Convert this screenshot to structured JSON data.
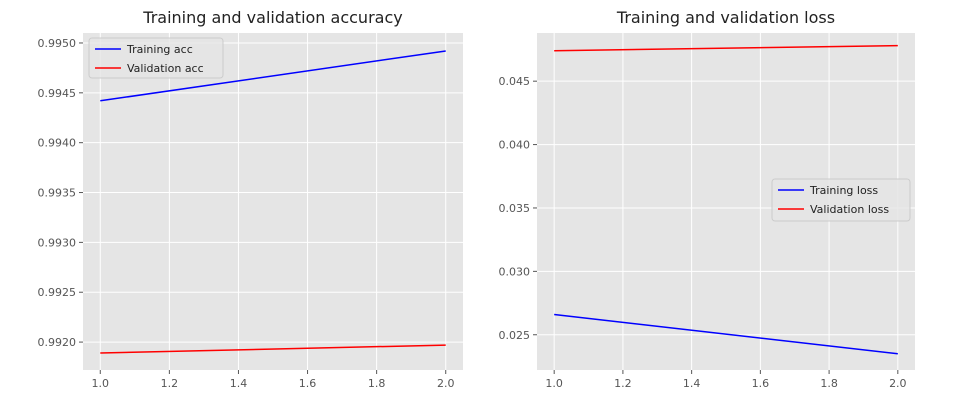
{
  "chart_data": [
    {
      "type": "line",
      "title": "Training and validation accuracy",
      "xlabel": "",
      "ylabel": "",
      "xlim": [
        0.95,
        2.05
      ],
      "ylim": [
        0.99172,
        0.9951
      ],
      "xticks": [
        1.0,
        1.2,
        1.4,
        1.6,
        1.8,
        2.0
      ],
      "xtick_labels": [
        "1.0",
        "1.2",
        "1.4",
        "1.6",
        "1.8",
        "2.0"
      ],
      "yticks": [
        0.992,
        0.9925,
        0.993,
        0.9935,
        0.994,
        0.9945,
        0.995
      ],
      "ytick_labels": [
        "0.9920",
        "0.9925",
        "0.9930",
        "0.9935",
        "0.9940",
        "0.9945",
        "0.9950"
      ],
      "grid": true,
      "legend": "upper left",
      "series": [
        {
          "name": "Training acc",
          "color": "#0000ff",
          "x": [
            1.0,
            2.0
          ],
          "y": [
            0.99442,
            0.99492
          ]
        },
        {
          "name": "Validation acc",
          "color": "#ff0000",
          "x": [
            1.0,
            2.0
          ],
          "y": [
            0.99189,
            0.99197
          ]
        }
      ]
    },
    {
      "type": "line",
      "title": "Training and validation loss",
      "xlabel": "",
      "ylabel": "",
      "xlim": [
        0.95,
        2.05
      ],
      "ylim": [
        0.02222,
        0.0488
      ],
      "xticks": [
        1.0,
        1.2,
        1.4,
        1.6,
        1.8,
        2.0
      ],
      "xtick_labels": [
        "1.0",
        "1.2",
        "1.4",
        "1.6",
        "1.8",
        "2.0"
      ],
      "yticks": [
        0.025,
        0.03,
        0.035,
        0.04,
        0.045
      ],
      "ytick_labels": [
        "0.025",
        "0.030",
        "0.035",
        "0.040",
        "0.045"
      ],
      "grid": true,
      "legend": "center right",
      "series": [
        {
          "name": "Training loss",
          "color": "#0000ff",
          "x": [
            1.0,
            2.0
          ],
          "y": [
            0.0266,
            0.0235
          ]
        },
        {
          "name": "Validation loss",
          "color": "#ff0000",
          "x": [
            1.0,
            2.0
          ],
          "y": [
            0.0474,
            0.0478
          ]
        }
      ]
    }
  ]
}
